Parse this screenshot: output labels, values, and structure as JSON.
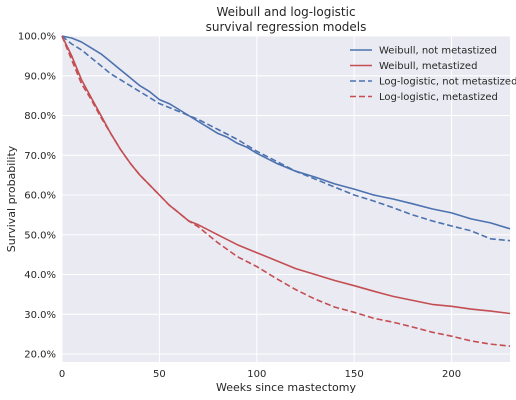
{
  "chart_data": {
    "type": "line",
    "title": "Weibull and log-logistic",
    "subtitle": "survival regression models",
    "xlabel": "Weeks since mastectomy",
    "ylabel": "Survival probability",
    "xlim": [
      0,
      230
    ],
    "ylim": [
      0.18,
      1.0
    ],
    "xticks": [
      0,
      50,
      100,
      150,
      200
    ],
    "yticks": [
      0.2,
      0.3,
      0.4,
      0.5,
      0.6,
      0.7,
      0.8,
      0.9,
      1.0
    ],
    "ytick_labels": [
      "20.0%",
      "30.0%",
      "40.0%",
      "50.0%",
      "60.0%",
      "70.0%",
      "80.0%",
      "90.0%",
      "100.0%"
    ],
    "grid": true,
    "legend_position": "top-right",
    "series": [
      {
        "name": "Weibull, not metastized",
        "color": "#4C72B0",
        "dash": "solid",
        "x": [
          0,
          5,
          10,
          15,
          20,
          25,
          30,
          35,
          40,
          45,
          50,
          55,
          60,
          65,
          70,
          75,
          80,
          85,
          90,
          95,
          100,
          110,
          120,
          130,
          140,
          150,
          160,
          170,
          180,
          190,
          200,
          210,
          220,
          230
        ],
        "y": [
          1.0,
          0.995,
          0.985,
          0.97,
          0.955,
          0.935,
          0.915,
          0.895,
          0.875,
          0.86,
          0.84,
          0.83,
          0.815,
          0.8,
          0.785,
          0.77,
          0.755,
          0.745,
          0.73,
          0.72,
          0.705,
          0.68,
          0.66,
          0.645,
          0.628,
          0.615,
          0.6,
          0.59,
          0.578,
          0.565,
          0.555,
          0.54,
          0.53,
          0.515
        ]
      },
      {
        "name": "Weibull, metastized",
        "color": "#C44E52",
        "dash": "solid",
        "x": [
          0,
          5,
          10,
          15,
          20,
          25,
          30,
          35,
          40,
          45,
          50,
          55,
          60,
          65,
          70,
          80,
          90,
          100,
          110,
          120,
          130,
          140,
          150,
          160,
          170,
          180,
          190,
          200,
          210,
          220,
          230
        ],
        "y": [
          1.0,
          0.95,
          0.89,
          0.845,
          0.8,
          0.755,
          0.715,
          0.68,
          0.65,
          0.625,
          0.6,
          0.575,
          0.555,
          0.535,
          0.525,
          0.5,
          0.475,
          0.455,
          0.435,
          0.415,
          0.4,
          0.385,
          0.372,
          0.358,
          0.345,
          0.335,
          0.325,
          0.32,
          0.313,
          0.308,
          0.302
        ]
      },
      {
        "name": "Log-logistic, not metastized",
        "color": "#4C72B0",
        "dash": "dashed",
        "x": [
          0,
          5,
          10,
          15,
          20,
          25,
          30,
          35,
          40,
          45,
          50,
          60,
          70,
          80,
          90,
          100,
          110,
          120,
          130,
          140,
          150,
          160,
          170,
          180,
          190,
          200,
          210,
          220,
          230
        ],
        "y": [
          1.0,
          0.98,
          0.965,
          0.945,
          0.925,
          0.905,
          0.89,
          0.875,
          0.86,
          0.845,
          0.83,
          0.81,
          0.79,
          0.765,
          0.74,
          0.71,
          0.685,
          0.66,
          0.64,
          0.62,
          0.6,
          0.585,
          0.568,
          0.55,
          0.535,
          0.522,
          0.51,
          0.49,
          0.485
        ]
      },
      {
        "name": "Log-logistic, metastized",
        "color": "#C44E52",
        "dash": "dashed",
        "x": [
          0,
          5,
          10,
          15,
          20,
          25,
          30,
          35,
          40,
          45,
          50,
          55,
          60,
          65,
          70,
          80,
          90,
          100,
          110,
          120,
          130,
          140,
          150,
          160,
          170,
          180,
          190,
          200,
          210,
          220,
          230
        ],
        "y": [
          1.0,
          0.94,
          0.88,
          0.84,
          0.795,
          0.755,
          0.715,
          0.68,
          0.65,
          0.625,
          0.6,
          0.575,
          0.555,
          0.535,
          0.52,
          0.48,
          0.445,
          0.42,
          0.39,
          0.362,
          0.338,
          0.318,
          0.305,
          0.29,
          0.28,
          0.268,
          0.255,
          0.245,
          0.233,
          0.225,
          0.22
        ]
      }
    ]
  }
}
